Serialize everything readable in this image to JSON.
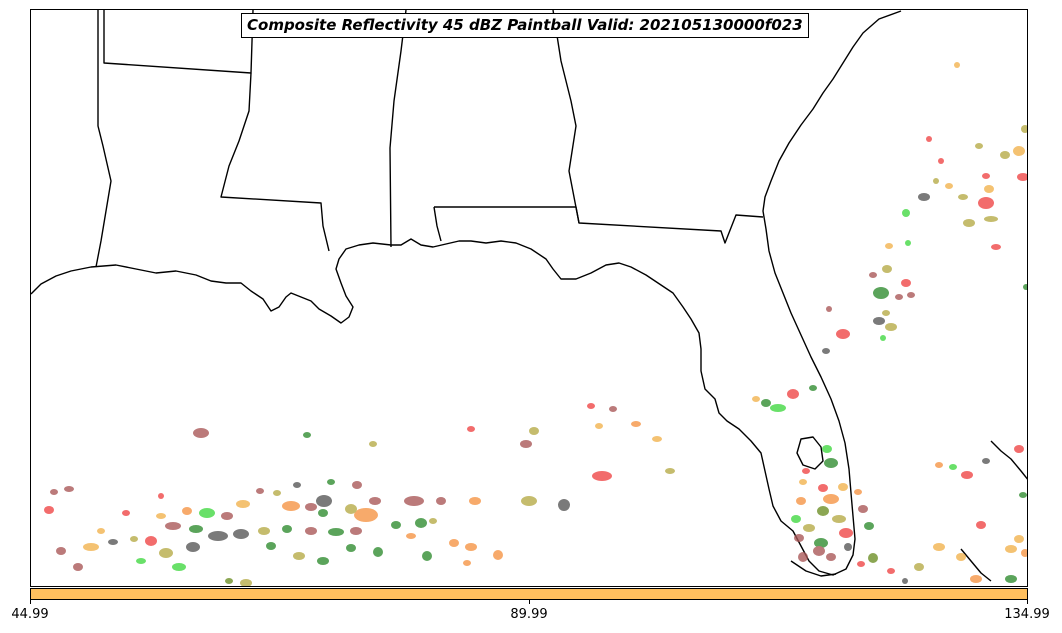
{
  "title": "Composite Reflectivity 45 dBZ Paintball Valid: 202105130000f023",
  "colorbar": {
    "color": "#ffbf5e",
    "ticks": [
      "44.99",
      "89.99",
      "134.99"
    ]
  },
  "map": {
    "region": "US Gulf Coast and Florida",
    "states_shown": [
      "Louisiana",
      "Mississippi",
      "Alabama",
      "Georgia",
      "Florida"
    ],
    "paintball_colors": [
      "#ef4444",
      "#f59342",
      "#f2b14b",
      "#2e8b2e",
      "#3fd83f",
      "#a85656",
      "#b5aa45",
      "#555555",
      "#6b8e23"
    ]
  }
}
